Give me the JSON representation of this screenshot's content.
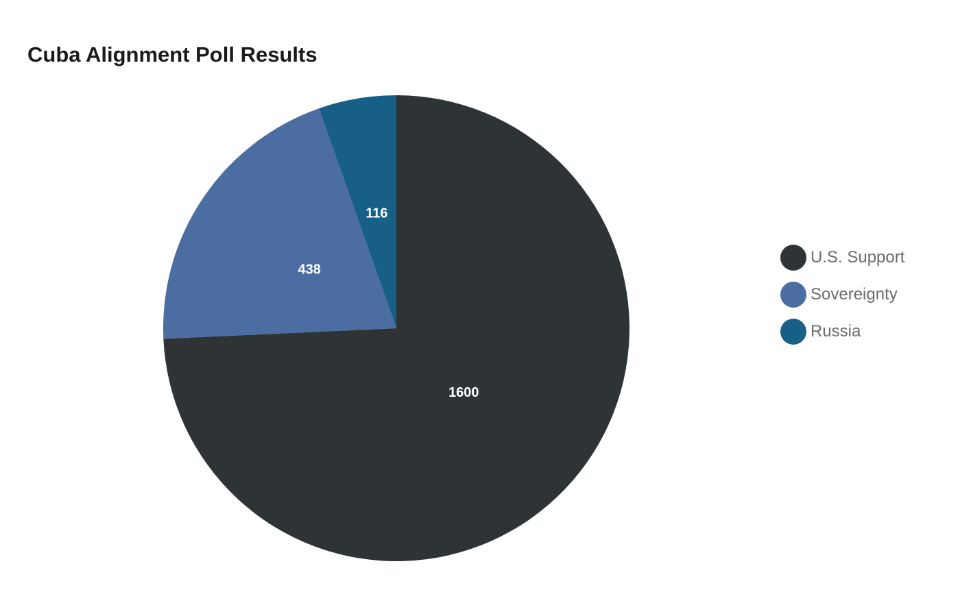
{
  "chart_data": {
    "type": "pie",
    "title": "Cuba Alignment Poll Results",
    "categories": [
      "U.S. Support",
      "Sovereignty",
      "Russia"
    ],
    "values": [
      1600,
      438,
      116
    ],
    "colors": [
      "#2e3436",
      "#4b6da1",
      "#185f87"
    ],
    "data_labels": [
      "1600",
      "438",
      "116"
    ],
    "start_angle": "12 o'clock",
    "direction": "clockwise",
    "legend_position": "right"
  }
}
